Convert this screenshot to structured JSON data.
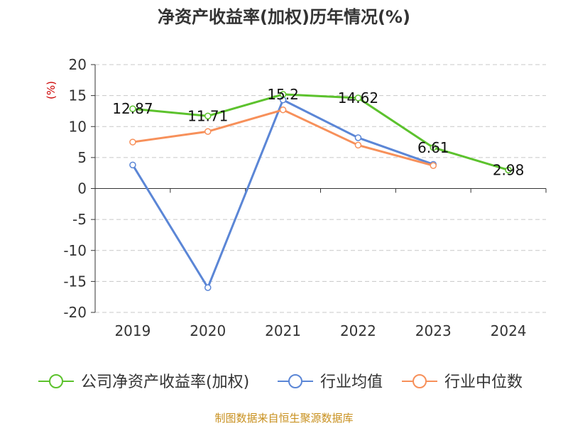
{
  "colors": {
    "company": "#5cc22d",
    "industry_avg": "#5b86d6",
    "industry_median": "#f7905a",
    "axis": "#333333",
    "grid": "#c8c8c8",
    "unit": "#cc0000",
    "source": "#c8901e"
  },
  "chart_data": {
    "type": "line",
    "title": "净资产收益率(加权)历年情况(%)",
    "ylabel": "(%)",
    "xlabel": "",
    "ylim": [
      -20,
      20
    ],
    "yticks": [
      "20",
      "15",
      "10",
      "5",
      "0",
      "-5",
      "-10",
      "-15",
      "-20"
    ],
    "ytick_values": [
      20,
      15,
      10,
      5,
      0,
      -5,
      -10,
      -15,
      -20
    ],
    "categories": [
      "2019",
      "2020",
      "2021",
      "2022",
      "2023",
      "2024"
    ],
    "series": [
      {
        "name": "公司净资产收益率(加权)",
        "key": "company",
        "values": [
          12.87,
          11.71,
          15.2,
          14.62,
          6.61,
          2.98
        ],
        "labels": [
          "12.87",
          "11.71",
          "15.2",
          "14.62",
          "6.61",
          "2.98"
        ],
        "show_labels": true
      },
      {
        "name": "行业均值",
        "key": "industry_avg",
        "values": [
          3.8,
          -16.0,
          14.3,
          8.2,
          3.9,
          null
        ],
        "show_labels": false
      },
      {
        "name": "行业中位数",
        "key": "industry_median",
        "values": [
          7.5,
          9.2,
          12.7,
          7.0,
          3.7,
          null
        ],
        "show_labels": false
      }
    ],
    "legend_position": "bottom",
    "grid": true,
    "source": "制图数据来自恒生聚源数据库"
  }
}
